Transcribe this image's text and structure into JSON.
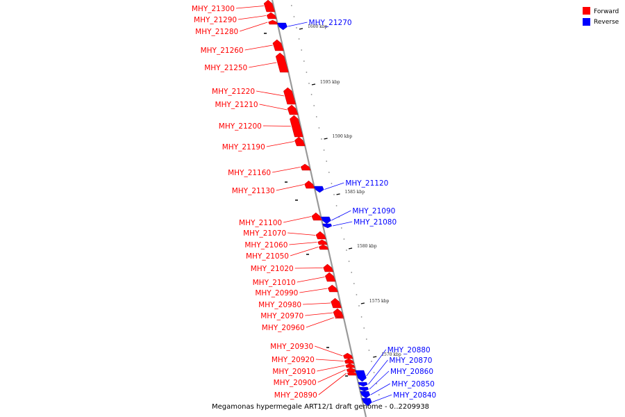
{
  "caption": "Megamonas hypermegale ART12/1 draft genome - 0..2209938",
  "colors": {
    "forward": "#ff0000",
    "reverse": "#0000ff",
    "backbone": "#999999"
  },
  "legend": [
    {
      "label": "Forward",
      "strand": "forward"
    },
    {
      "label": "Reverse",
      "strand": "reverse"
    }
  ],
  "ticks": [
    "1600 kbp",
    "1595 kbp",
    "1590 kbp",
    "1585 kbp",
    "1580 kbp",
    "1575 kbp",
    "1570 kbp"
  ],
  "genes": [
    {
      "name": "MHY_21300",
      "strand": "forward"
    },
    {
      "name": "MHY_21290",
      "strand": "forward"
    },
    {
      "name": "MHY_21280",
      "strand": "forward"
    },
    {
      "name": "MHY_21270",
      "strand": "reverse"
    },
    {
      "name": "MHY_21260",
      "strand": "forward"
    },
    {
      "name": "MHY_21250",
      "strand": "forward"
    },
    {
      "name": "MHY_21220",
      "strand": "forward"
    },
    {
      "name": "MHY_21210",
      "strand": "forward"
    },
    {
      "name": "MHY_21200",
      "strand": "forward"
    },
    {
      "name": "MHY_21190",
      "strand": "forward"
    },
    {
      "name": "MHY_21160",
      "strand": "forward"
    },
    {
      "name": "MHY_21130",
      "strand": "forward"
    },
    {
      "name": "MHY_21120",
      "strand": "reverse"
    },
    {
      "name": "MHY_21100",
      "strand": "forward"
    },
    {
      "name": "MHY_21090",
      "strand": "reverse"
    },
    {
      "name": "MHY_21080",
      "strand": "reverse"
    },
    {
      "name": "MHY_21070",
      "strand": "forward"
    },
    {
      "name": "MHY_21060",
      "strand": "forward"
    },
    {
      "name": "MHY_21050",
      "strand": "forward"
    },
    {
      "name": "MHY_21020",
      "strand": "forward"
    },
    {
      "name": "MHY_21010",
      "strand": "forward"
    },
    {
      "name": "MHY_20990",
      "strand": "forward"
    },
    {
      "name": "MHY_20980",
      "strand": "forward"
    },
    {
      "name": "MHY_20970",
      "strand": "forward"
    },
    {
      "name": "MHY_20960",
      "strand": "forward"
    },
    {
      "name": "MHY_20930",
      "strand": "forward"
    },
    {
      "name": "MHY_20920",
      "strand": "forward"
    },
    {
      "name": "MHY_20910",
      "strand": "forward"
    },
    {
      "name": "MHY_20900",
      "strand": "forward"
    },
    {
      "name": "MHY_20890",
      "strand": "forward"
    },
    {
      "name": "MHY_20880",
      "strand": "reverse"
    },
    {
      "name": "MHY_20870",
      "strand": "reverse"
    },
    {
      "name": "MHY_20860",
      "strand": "reverse"
    },
    {
      "name": "MHY_20850",
      "strand": "reverse"
    },
    {
      "name": "MHY_20840",
      "strand": "reverse"
    }
  ]
}
